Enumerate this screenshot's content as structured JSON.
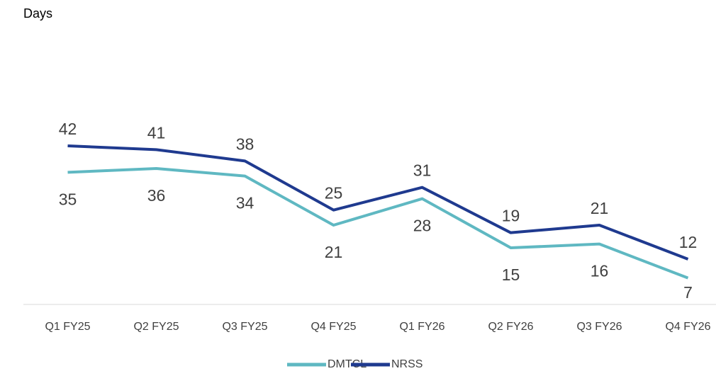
{
  "chart_data": {
    "type": "line",
    "y_label": "Days",
    "categories": [
      "Q1 FY25",
      "Q2 FY25",
      "Q3 FY25",
      "Q4 FY25",
      "Q1 FY26",
      "Q2 FY26",
      "Q3 FY26",
      "Q4 FY26"
    ],
    "series": [
      {
        "name": "DMTCL",
        "color": "#5fb8c2",
        "values": [
          35,
          36,
          34,
          21,
          28,
          15,
          16,
          7
        ]
      },
      {
        "name": "NRSS",
        "color": "#1f3a8f",
        "values": [
          42,
          41,
          38,
          25,
          31,
          19,
          21,
          12
        ]
      }
    ],
    "ylim": [
      0,
      75
    ],
    "legend": "bottom"
  }
}
